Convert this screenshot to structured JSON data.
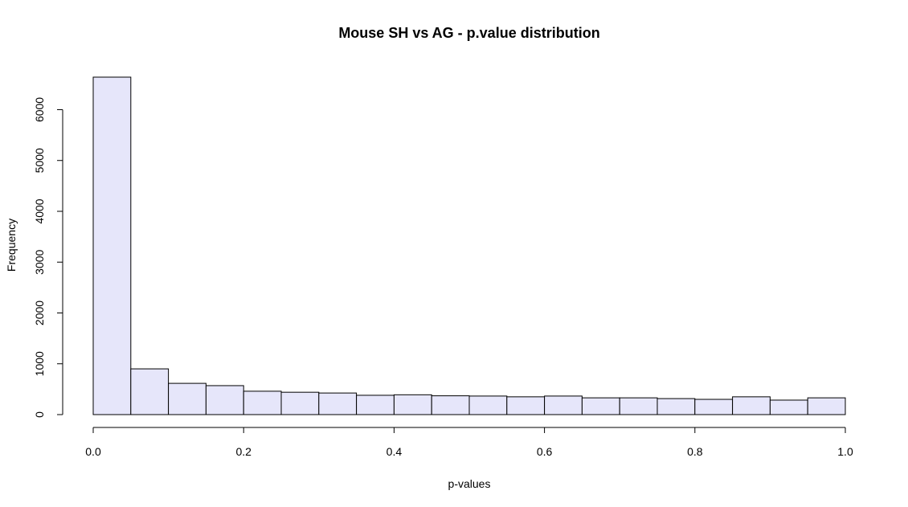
{
  "chart_data": {
    "type": "bar",
    "subtype": "histogram",
    "title": "Mouse SH vs AG - p.value distribution",
    "xlabel": "p-values",
    "ylabel": "Frequency",
    "bar_color": "#e6e6fa",
    "edge_color": "#000000",
    "bin_width": 0.05,
    "x": [
      0.0,
      0.05,
      0.1,
      0.15,
      0.2,
      0.25,
      0.3,
      0.35,
      0.4,
      0.45,
      0.5,
      0.55,
      0.6,
      0.65,
      0.7,
      0.75,
      0.8,
      0.85,
      0.9,
      0.95
    ],
    "values": [
      6640,
      900,
      615,
      570,
      460,
      440,
      425,
      380,
      390,
      370,
      365,
      350,
      365,
      330,
      330,
      315,
      300,
      350,
      285,
      330
    ],
    "xlim": [
      0,
      1
    ],
    "ylim": [
      0,
      6640
    ],
    "xticks": [
      "0.0",
      "0.2",
      "0.4",
      "0.6",
      "0.8",
      "1.0"
    ],
    "yticks": [
      "0",
      "1000",
      "2000",
      "3000",
      "4000",
      "5000",
      "6000"
    ],
    "grid": false
  }
}
